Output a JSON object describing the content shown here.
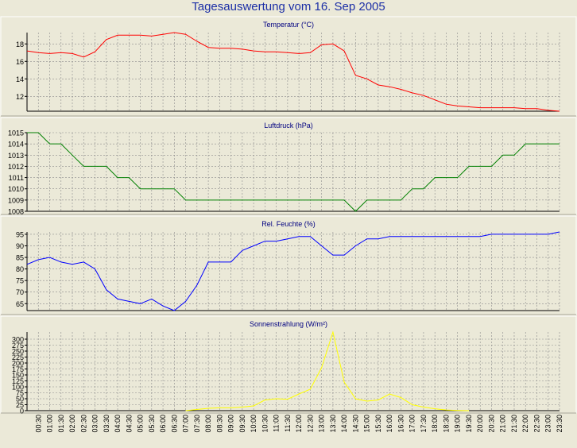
{
  "title": "Tagesauswertung vom 16. Sep 2005",
  "time_labels": [
    "00:30",
    "01:00",
    "01:30",
    "02:00",
    "02:30",
    "03:00",
    "03:30",
    "04:00",
    "04:30",
    "05:00",
    "05:30",
    "06:00",
    "06:30",
    "07:00",
    "07:30",
    "08:00",
    "08:30",
    "09:00",
    "09:30",
    "10:00",
    "10:30",
    "11:00",
    "11:30",
    "12:00",
    "12:30",
    "13:00",
    "13:30",
    "14:00",
    "14:30",
    "15:00",
    "15:30",
    "16:00",
    "16:30",
    "17:00",
    "17:30",
    "18:00",
    "18:30",
    "19:00",
    "19:30",
    "20:00",
    "20:30",
    "21:00",
    "21:30",
    "22:00",
    "22:30",
    "23:00",
    "23:30"
  ],
  "chart_data": [
    {
      "type": "line",
      "title": "Temperatur (°C)",
      "color": "#ff0000",
      "ylim": [
        10.3,
        19.3
      ],
      "yticks": [
        12,
        14,
        16,
        18
      ],
      "grid": true,
      "x": [
        "00:00",
        "00:30",
        "01:00",
        "01:30",
        "02:00",
        "02:30",
        "03:00",
        "03:30",
        "04:00",
        "04:30",
        "05:00",
        "05:30",
        "06:00",
        "06:30",
        "07:00",
        "07:30",
        "08:00",
        "08:30",
        "09:00",
        "09:30",
        "10:00",
        "10:30",
        "11:00",
        "11:30",
        "12:00",
        "12:30",
        "13:00",
        "13:30",
        "14:00",
        "14:30",
        "15:00",
        "15:30",
        "16:00",
        "16:30",
        "17:00",
        "17:30",
        "18:00",
        "18:30",
        "19:00",
        "19:30",
        "20:00",
        "20:30",
        "21:00",
        "21:30",
        "22:00",
        "22:30",
        "23:00",
        "23:30"
      ],
      "values": [
        17.2,
        17.0,
        16.9,
        17.0,
        16.9,
        16.5,
        17.1,
        18.5,
        19.0,
        19.0,
        19.0,
        18.9,
        19.1,
        19.3,
        19.1,
        18.3,
        17.6,
        17.5,
        17.5,
        17.4,
        17.2,
        17.1,
        17.1,
        17.0,
        16.9,
        17.0,
        17.9,
        18.0,
        17.2,
        14.4,
        14.0,
        13.3,
        13.1,
        12.8,
        12.4,
        12.1,
        11.6,
        11.1,
        10.9,
        10.8,
        10.7,
        10.7,
        10.7,
        10.7,
        10.6,
        10.6,
        10.4,
        10.3
      ]
    },
    {
      "type": "line",
      "title": "Luftdruck (hPa)",
      "color": "#008000",
      "ylim": [
        1008,
        1015
      ],
      "yticks": [
        1008,
        1009,
        1010,
        1011,
        1012,
        1013,
        1014,
        1015
      ],
      "grid": true,
      "x": [
        "00:00",
        "00:30",
        "01:00",
        "01:30",
        "02:00",
        "02:30",
        "03:00",
        "03:30",
        "04:00",
        "04:30",
        "05:00",
        "05:30",
        "06:00",
        "06:30",
        "07:00",
        "07:30",
        "08:00",
        "08:30",
        "09:00",
        "09:30",
        "10:00",
        "10:30",
        "11:00",
        "11:30",
        "12:00",
        "12:30",
        "13:00",
        "13:30",
        "14:00",
        "14:30",
        "15:00",
        "15:30",
        "16:00",
        "16:30",
        "17:00",
        "17:30",
        "18:00",
        "18:30",
        "19:00",
        "19:30",
        "20:00",
        "20:30",
        "21:00",
        "21:30",
        "22:00",
        "22:30",
        "23:00",
        "23:30"
      ],
      "values": [
        1015,
        1015,
        1014,
        1014,
        1013,
        1012,
        1012,
        1012,
        1011,
        1011,
        1010,
        1010,
        1010,
        1010,
        1009,
        1009,
        1009,
        1009,
        1009,
        1009,
        1009,
        1009,
        1009,
        1009,
        1009,
        1009,
        1009,
        1009,
        1009,
        1008,
        1009,
        1009,
        1009,
        1009,
        1010,
        1010,
        1011,
        1011,
        1011,
        1012,
        1012,
        1012,
        1013,
        1013,
        1014,
        1014,
        1014,
        1014
      ]
    },
    {
      "type": "line",
      "title": "Rel. Feuchte (%)",
      "color": "#0000ff",
      "ylim": [
        62,
        96
      ],
      "yticks": [
        65,
        70,
        75,
        80,
        85,
        90,
        95
      ],
      "grid": true,
      "x": [
        "00:00",
        "00:30",
        "01:00",
        "01:30",
        "02:00",
        "02:30",
        "03:00",
        "03:30",
        "04:00",
        "04:30",
        "05:00",
        "05:30",
        "06:00",
        "06:30",
        "07:00",
        "07:30",
        "08:00",
        "08:30",
        "09:00",
        "09:30",
        "10:00",
        "10:30",
        "11:00",
        "11:30",
        "12:00",
        "12:30",
        "13:00",
        "13:30",
        "14:00",
        "14:30",
        "15:00",
        "15:30",
        "16:00",
        "16:30",
        "17:00",
        "17:30",
        "18:00",
        "18:30",
        "19:00",
        "19:30",
        "20:00",
        "20:30",
        "21:00",
        "21:30",
        "22:00",
        "22:30",
        "23:00",
        "23:30"
      ],
      "values": [
        82,
        84,
        85,
        83,
        82,
        83,
        80,
        71,
        67,
        66,
        65,
        67,
        64,
        62,
        66,
        73,
        83,
        83,
        83,
        88,
        90,
        92,
        92,
        93,
        94,
        94,
        90,
        86,
        86,
        90,
        93,
        93,
        94,
        94,
        94,
        94,
        94,
        94,
        94,
        94,
        94,
        95,
        95,
        95,
        95,
        95,
        95,
        96
      ]
    },
    {
      "type": "line",
      "title": "Sonnenstrahlung (W/m²)",
      "color": "#ffff00",
      "ylim": [
        0,
        330
      ],
      "yticks": [
        0,
        25,
        50,
        75,
        100,
        125,
        150,
        175,
        200,
        225,
        250,
        275,
        300
      ],
      "grid": true,
      "x": [
        "00:00",
        "00:30",
        "01:00",
        "01:30",
        "02:00",
        "02:30",
        "03:00",
        "03:30",
        "04:00",
        "04:30",
        "05:00",
        "05:30",
        "06:00",
        "06:30",
        "07:00",
        "07:30",
        "08:00",
        "08:30",
        "09:00",
        "09:30",
        "10:00",
        "10:30",
        "11:00",
        "11:30",
        "12:00",
        "12:30",
        "13:00",
        "13:30",
        "14:00",
        "14:30",
        "15:00",
        "15:30",
        "16:00",
        "16:30",
        "17:00",
        "17:30",
        "18:00",
        "18:30",
        "19:00",
        "19:30",
        "20:00",
        "20:30",
        "21:00",
        "21:30",
        "22:00",
        "22:30",
        "23:00",
        "23:30"
      ],
      "values": [
        null,
        null,
        null,
        null,
        null,
        null,
        null,
        null,
        null,
        null,
        null,
        null,
        null,
        null,
        0,
        5,
        10,
        12,
        12,
        15,
        20,
        45,
        50,
        48,
        70,
        90,
        180,
        330,
        120,
        50,
        40,
        45,
        70,
        55,
        25,
        15,
        8,
        3,
        1,
        0,
        null,
        null,
        null,
        null,
        null,
        null,
        null,
        null
      ]
    }
  ]
}
